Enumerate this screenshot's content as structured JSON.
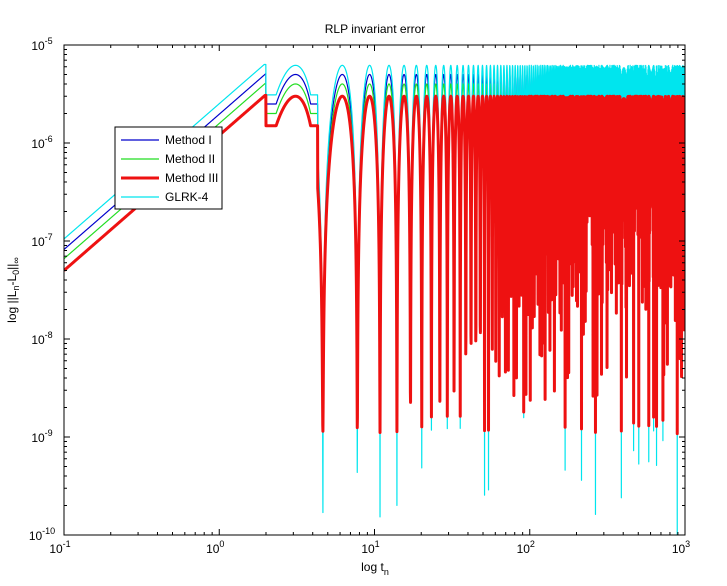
{
  "chart_data": {
    "type": "line",
    "title": "RLP invariant error",
    "xlabel": "log t_n",
    "ylabel": "log ||L_n-L_0||_∞",
    "xscale": "log",
    "yscale": "log",
    "xlim": [
      0.1,
      1000
    ],
    "ylim": [
      1e-10,
      1e-05
    ],
    "x_ticks": [
      {
        "value": 0.1,
        "base": "10",
        "exp": "-1"
      },
      {
        "value": 1,
        "base": "10",
        "exp": "0"
      },
      {
        "value": 10,
        "base": "10",
        "exp": "1"
      },
      {
        "value": 100,
        "base": "10",
        "exp": "2"
      },
      {
        "value": 1000,
        "base": "10",
        "exp": "3"
      }
    ],
    "y_ticks": [
      {
        "value": 1e-10,
        "base": "10",
        "exp": "-10"
      },
      {
        "value": 1e-09,
        "base": "10",
        "exp": "-9"
      },
      {
        "value": 1e-08,
        "base": "10",
        "exp": "-8"
      },
      {
        "value": 1e-07,
        "base": "10",
        "exp": "-7"
      },
      {
        "value": 1e-06,
        "base": "10",
        "exp": "-6"
      },
      {
        "value": 1e-05,
        "base": "10",
        "exp": "-5"
      }
    ],
    "legend_position": "upper-left",
    "series": [
      {
        "name": "Method I",
        "color": "#0000cc",
        "line_width": 1.2,
        "peak_value": 5e-06,
        "start_value": 8.2e-08,
        "min_floor": 3e-09
      },
      {
        "name": "Method II",
        "color": "#22dd22",
        "line_width": 1.2,
        "peak_value": 4e-06,
        "start_value": 6.6e-08,
        "min_floor": 2.4e-09
      },
      {
        "name": "Method III",
        "color": "#ee1111",
        "line_width": 3,
        "peak_value": 3e-06,
        "start_value": 5e-08,
        "min_floor": 1.2e-09
      },
      {
        "name": "GLRK-4",
        "color": "#00e5ee",
        "line_width": 1.2,
        "peak_value": 6.2e-06,
        "start_value": 1.05e-07,
        "min_floor": 1e-10
      }
    ]
  }
}
